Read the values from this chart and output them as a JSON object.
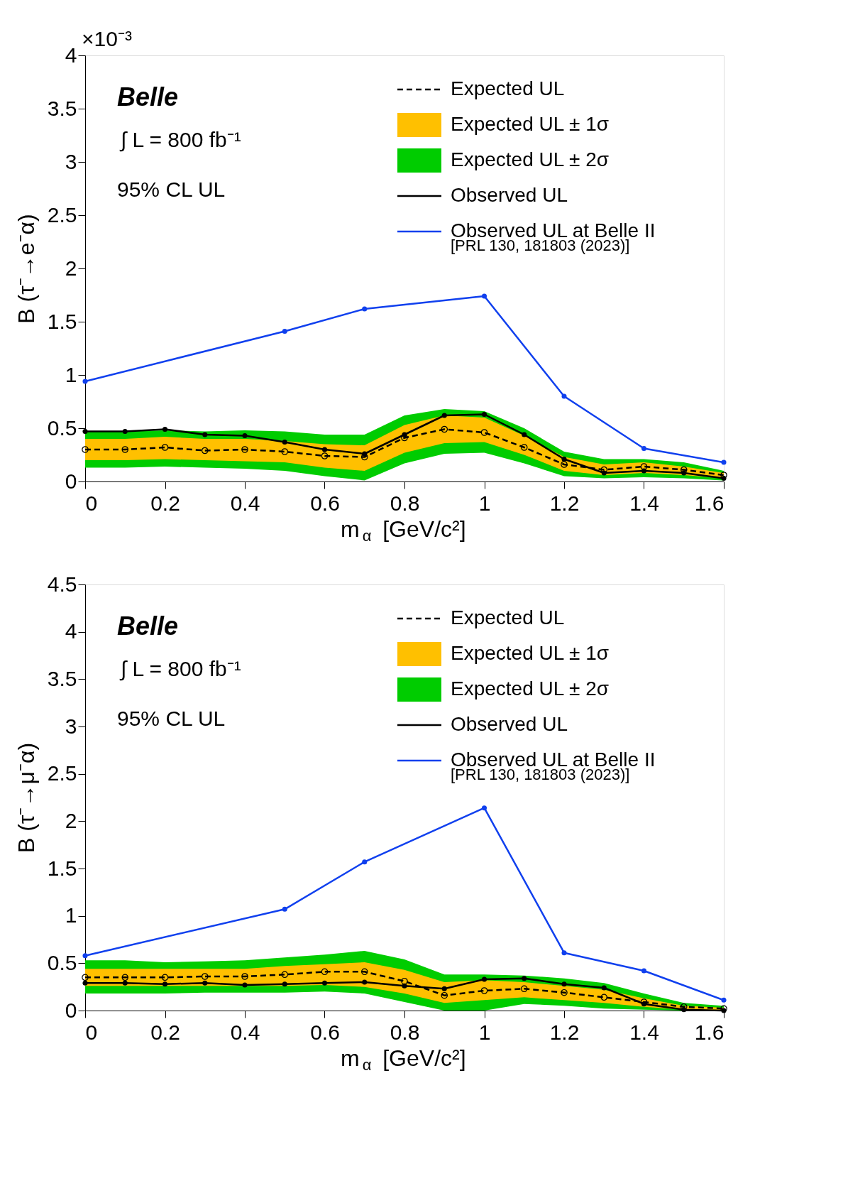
{
  "chart_data": [
    {
      "type": "line",
      "xlabel": "m$_{α}$ [GeV/c²]",
      "ylabel": "B (τ⁻→e⁻α)",
      "xlim": [
        0,
        1.6
      ],
      "xticks": [
        0,
        0.2,
        0.4,
        0.6,
        0.8,
        1,
        1.2,
        1.4,
        1.6
      ],
      "ylim": [
        0,
        4
      ],
      "yticks": [
        0,
        0.5,
        1,
        1.5,
        2,
        2.5,
        3,
        3.5,
        4
      ],
      "grid": false,
      "legend": "top right",
      "annotations": [
        "×10⁻³",
        "Belle",
        "∫ L = 800 fb⁻¹",
        "95% CL UL",
        "[PRL 130, 181803 (2023)]"
      ],
      "x": [
        0,
        0.1,
        0.2,
        0.3,
        0.4,
        0.5,
        0.6,
        0.7,
        0.8,
        0.9,
        1.0,
        1.1,
        1.2,
        1.3,
        1.4,
        1.5,
        1.6
      ],
      "series": [
        {
          "name": "Expected UL",
          "type": "line",
          "line_style": "dashed",
          "marker": "circle",
          "color": "#000000",
          "values": [
            0.3,
            0.3,
            0.32,
            0.29,
            0.3,
            0.28,
            0.24,
            0.23,
            0.41,
            0.49,
            0.46,
            0.32,
            0.16,
            0.11,
            0.14,
            0.11,
            0.06
          ]
        },
        {
          "name": "Expected UL ± 1σ",
          "type": "area",
          "color": "#ffc000",
          "values": [
            null,
            null,
            null,
            null,
            null,
            null,
            null,
            null,
            null,
            null,
            null,
            null,
            null,
            null,
            null,
            null,
            null
          ],
          "lower": [
            0.2,
            0.2,
            0.21,
            0.2,
            0.19,
            0.18,
            0.13,
            0.1,
            0.27,
            0.36,
            0.37,
            0.25,
            0.1,
            0.06,
            0.08,
            0.06,
            0.03
          ],
          "upper": [
            0.4,
            0.4,
            0.42,
            0.4,
            0.4,
            0.38,
            0.35,
            0.34,
            0.53,
            0.62,
            0.6,
            0.43,
            0.23,
            0.16,
            0.18,
            0.14,
            0.08
          ]
        },
        {
          "name": "Expected UL ± 2σ",
          "type": "area",
          "color": "#00cc00",
          "values": [
            null,
            null,
            null,
            null,
            null,
            null,
            null,
            null,
            null,
            null,
            null,
            null,
            null,
            null,
            null,
            null,
            null
          ],
          "lower": [
            0.13,
            0.13,
            0.14,
            0.13,
            0.12,
            0.1,
            0.05,
            0.01,
            0.17,
            0.26,
            0.27,
            0.17,
            0.05,
            0.03,
            0.04,
            0.03,
            0.01
          ],
          "upper": [
            0.47,
            0.47,
            0.48,
            0.47,
            0.48,
            0.47,
            0.44,
            0.44,
            0.62,
            0.68,
            0.66,
            0.5,
            0.28,
            0.21,
            0.21,
            0.18,
            0.1
          ]
        },
        {
          "name": "Observed UL",
          "type": "line",
          "line_style": "solid",
          "marker": "circle",
          "color": "#000000",
          "values": [
            0.47,
            0.47,
            0.49,
            0.44,
            0.43,
            0.37,
            0.3,
            0.26,
            0.44,
            0.62,
            0.63,
            0.44,
            0.21,
            0.08,
            0.1,
            0.08,
            0.03
          ]
        },
        {
          "name": "Observed UL at Belle II",
          "type": "line",
          "line_style": "solid",
          "marker": "circle",
          "color": "#1040ee",
          "x": [
            0,
            0.5,
            0.7,
            1.0,
            1.2,
            1.4,
            1.6
          ],
          "values": [
            0.94,
            1.41,
            1.62,
            1.74,
            0.8,
            0.31,
            0.18
          ]
        }
      ]
    },
    {
      "type": "line",
      "xlabel": "m$_{α}$ [GeV/c²]",
      "ylabel": "B (τ⁻→μ⁻α)",
      "xlim": [
        0,
        1.6
      ],
      "xticks": [
        0,
        0.2,
        0.4,
        0.6,
        0.8,
        1,
        1.2,
        1.4,
        1.6
      ],
      "ylim": [
        0,
        4.5
      ],
      "yticks": [
        0,
        0.5,
        1,
        1.5,
        2,
        2.5,
        3,
        3.5,
        4,
        4.5
      ],
      "grid": false,
      "legend": "top right",
      "annotations": [
        "Belle",
        "∫ L = 800 fb⁻¹",
        "95% CL UL",
        "[PRL 130, 181803 (2023)]"
      ],
      "x": [
        0,
        0.1,
        0.2,
        0.3,
        0.4,
        0.5,
        0.6,
        0.7,
        0.8,
        0.9,
        1.0,
        1.1,
        1.2,
        1.3,
        1.4,
        1.5,
        1.6
      ],
      "series": [
        {
          "name": "Expected UL",
          "type": "line",
          "line_style": "dashed",
          "marker": "circle",
          "color": "#000000",
          "values": [
            0.35,
            0.35,
            0.35,
            0.36,
            0.36,
            0.38,
            0.41,
            0.41,
            0.31,
            0.16,
            0.21,
            0.23,
            0.19,
            0.14,
            0.09,
            0.04,
            0.02
          ]
        },
        {
          "name": "Expected UL ± 1σ",
          "type": "area",
          "color": "#ffc000",
          "values": [
            null,
            null,
            null,
            null,
            null,
            null,
            null,
            null,
            null,
            null,
            null,
            null,
            null,
            null,
            null,
            null,
            null
          ],
          "lower": [
            0.26,
            0.26,
            0.26,
            0.26,
            0.26,
            0.26,
            0.27,
            0.25,
            0.18,
            0.08,
            0.11,
            0.14,
            0.11,
            0.08,
            0.04,
            0.01,
            0.0
          ],
          "upper": [
            0.44,
            0.44,
            0.44,
            0.44,
            0.44,
            0.47,
            0.49,
            0.51,
            0.43,
            0.3,
            0.32,
            0.3,
            0.26,
            0.22,
            0.13,
            0.05,
            0.03
          ]
        },
        {
          "name": "Expected UL ± 2σ",
          "type": "area",
          "color": "#00cc00",
          "values": [
            null,
            null,
            null,
            null,
            null,
            null,
            null,
            null,
            null,
            null,
            null,
            null,
            null,
            null,
            null,
            null,
            null
          ],
          "lower": [
            0.18,
            0.18,
            0.18,
            0.19,
            0.19,
            0.19,
            0.2,
            0.18,
            0.09,
            0.0,
            0.0,
            0.07,
            0.05,
            0.02,
            0.01,
            0.0,
            0.0
          ],
          "upper": [
            0.53,
            0.53,
            0.51,
            0.52,
            0.53,
            0.56,
            0.59,
            0.63,
            0.54,
            0.38,
            0.38,
            0.37,
            0.34,
            0.29,
            0.18,
            0.08,
            0.05
          ]
        },
        {
          "name": "Observed UL",
          "type": "line",
          "line_style": "solid",
          "marker": "circle",
          "color": "#000000",
          "values": [
            0.29,
            0.29,
            0.28,
            0.29,
            0.27,
            0.28,
            0.29,
            0.3,
            0.26,
            0.23,
            0.33,
            0.34,
            0.28,
            0.24,
            0.07,
            0.01,
            0.0
          ]
        },
        {
          "name": "Observed UL at Belle II",
          "type": "line",
          "line_style": "solid",
          "marker": "circle",
          "color": "#1040ee",
          "x": [
            0,
            0.5,
            0.7,
            1.0,
            1.2,
            1.4,
            1.6
          ],
          "values": [
            0.58,
            1.07,
            1.57,
            2.14,
            0.61,
            0.42,
            0.11
          ]
        }
      ]
    }
  ]
}
